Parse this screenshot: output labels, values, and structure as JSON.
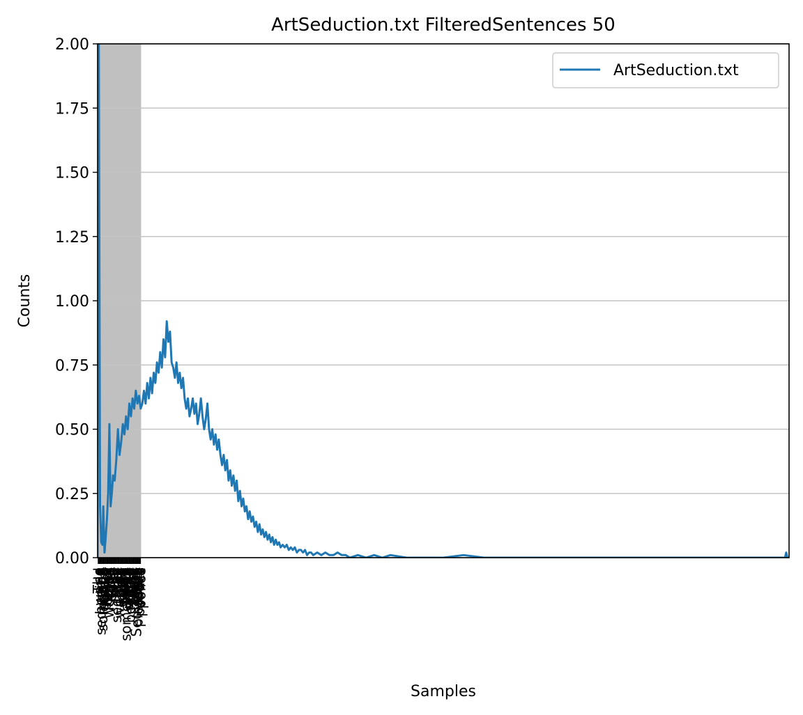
{
  "chart_data": {
    "type": "line",
    "title": "ArtSeduction.txt FilteredSentences 50",
    "xlabel": "Samples",
    "ylabel": "Counts",
    "ylim": [
      0,
      2.0
    ],
    "xlim": [
      0,
      1700
    ],
    "yticks": [
      0.0,
      0.25,
      0.5,
      0.75,
      1.0,
      1.25,
      1.5,
      1.75,
      2.0
    ],
    "ytick_labels": [
      "0.00",
      "0.25",
      "0.50",
      "0.75",
      "1.00",
      "1.25",
      "1.50",
      "1.75",
      "2.00"
    ],
    "grid": "horizontal",
    "legend": {
      "position": "top-right",
      "entries": [
        "ArtSeduction.txt"
      ]
    },
    "highlight_band": {
      "x_start": 0,
      "x_end": 107,
      "color": "#c0c0c0"
    },
    "xtick_labels": [
      "The",
      "world",
      "people",
      "seduction",
      "one",
      "someone",
      "others",
      "often",
      "make",
      "power",
      "come",
      "never",
      "woman",
      "love",
      "time",
      "even",
      "like",
      "life",
      "must",
      "way",
      "man",
      "seducer",
      "feel",
      "may",
      "women",
      "men",
      "know",
      "could",
      "sense",
      "want",
      "also",
      "see",
      "something",
      "give",
      "would",
      "desire",
      "thing",
      "become",
      "need",
      "first",
      "them",
      "way",
      "things",
      "get",
      "Seduction",
      "social",
      "pleasure",
      "tactic",
      "politics",
      "police"
    ],
    "series": [
      {
        "name": "ArtSeduction.txt",
        "color": "#1f77b4",
        "points": [
          [
            0,
            0.0
          ],
          [
            1,
            2.0
          ],
          [
            3,
            2.0
          ],
          [
            6,
            0.2
          ],
          [
            9,
            0.06
          ],
          [
            12,
            0.05
          ],
          [
            14,
            0.2
          ],
          [
            17,
            0.02
          ],
          [
            20,
            0.08
          ],
          [
            23,
            0.15
          ],
          [
            26,
            0.25
          ],
          [
            29,
            0.52
          ],
          [
            32,
            0.2
          ],
          [
            35,
            0.25
          ],
          [
            38,
            0.32
          ],
          [
            42,
            0.3
          ],
          [
            46,
            0.38
          ],
          [
            50,
            0.5
          ],
          [
            54,
            0.4
          ],
          [
            58,
            0.45
          ],
          [
            62,
            0.52
          ],
          [
            66,
            0.48
          ],
          [
            70,
            0.55
          ],
          [
            74,
            0.5
          ],
          [
            78,
            0.6
          ],
          [
            82,
            0.55
          ],
          [
            86,
            0.62
          ],
          [
            90,
            0.58
          ],
          [
            94,
            0.65
          ],
          [
            98,
            0.6
          ],
          [
            102,
            0.63
          ],
          [
            106,
            0.58
          ],
          [
            110,
            0.6
          ],
          [
            114,
            0.65
          ],
          [
            118,
            0.6
          ],
          [
            122,
            0.68
          ],
          [
            126,
            0.62
          ],
          [
            130,
            0.7
          ],
          [
            134,
            0.64
          ],
          [
            138,
            0.72
          ],
          [
            142,
            0.68
          ],
          [
            146,
            0.76
          ],
          [
            150,
            0.72
          ],
          [
            154,
            0.8
          ],
          [
            158,
            0.74
          ],
          [
            162,
            0.85
          ],
          [
            166,
            0.78
          ],
          [
            170,
            0.92
          ],
          [
            174,
            0.84
          ],
          [
            178,
            0.88
          ],
          [
            182,
            0.76
          ],
          [
            186,
            0.74
          ],
          [
            190,
            0.7
          ],
          [
            194,
            0.76
          ],
          [
            198,
            0.68
          ],
          [
            202,
            0.72
          ],
          [
            206,
            0.66
          ],
          [
            210,
            0.7
          ],
          [
            214,
            0.62
          ],
          [
            218,
            0.58
          ],
          [
            222,
            0.62
          ],
          [
            226,
            0.55
          ],
          [
            230,
            0.58
          ],
          [
            234,
            0.62
          ],
          [
            238,
            0.56
          ],
          [
            242,
            0.6
          ],
          [
            246,
            0.52
          ],
          [
            250,
            0.56
          ],
          [
            254,
            0.62
          ],
          [
            258,
            0.55
          ],
          [
            262,
            0.5
          ],
          [
            266,
            0.54
          ],
          [
            270,
            0.6
          ],
          [
            274,
            0.5
          ],
          [
            278,
            0.46
          ],
          [
            282,
            0.5
          ],
          [
            286,
            0.44
          ],
          [
            290,
            0.48
          ],
          [
            294,
            0.42
          ],
          [
            298,
            0.46
          ],
          [
            302,
            0.4
          ],
          [
            306,
            0.36
          ],
          [
            310,
            0.4
          ],
          [
            314,
            0.34
          ],
          [
            318,
            0.38
          ],
          [
            322,
            0.3
          ],
          [
            326,
            0.34
          ],
          [
            330,
            0.28
          ],
          [
            334,
            0.32
          ],
          [
            338,
            0.26
          ],
          [
            342,
            0.3
          ],
          [
            346,
            0.22
          ],
          [
            350,
            0.26
          ],
          [
            354,
            0.2
          ],
          [
            358,
            0.23
          ],
          [
            362,
            0.18
          ],
          [
            366,
            0.2
          ],
          [
            370,
            0.15
          ],
          [
            374,
            0.18
          ],
          [
            378,
            0.14
          ],
          [
            382,
            0.16
          ],
          [
            386,
            0.12
          ],
          [
            390,
            0.14
          ],
          [
            394,
            0.1
          ],
          [
            398,
            0.13
          ],
          [
            402,
            0.09
          ],
          [
            406,
            0.11
          ],
          [
            410,
            0.08
          ],
          [
            414,
            0.1
          ],
          [
            418,
            0.07
          ],
          [
            422,
            0.09
          ],
          [
            426,
            0.06
          ],
          [
            430,
            0.08
          ],
          [
            434,
            0.05
          ],
          [
            438,
            0.07
          ],
          [
            442,
            0.05
          ],
          [
            446,
            0.06
          ],
          [
            450,
            0.04
          ],
          [
            455,
            0.05
          ],
          [
            460,
            0.04
          ],
          [
            465,
            0.05
          ],
          [
            470,
            0.03
          ],
          [
            475,
            0.04
          ],
          [
            480,
            0.03
          ],
          [
            485,
            0.04
          ],
          [
            490,
            0.02
          ],
          [
            495,
            0.03
          ],
          [
            500,
            0.03
          ],
          [
            505,
            0.02
          ],
          [
            510,
            0.03
          ],
          [
            515,
            0.01
          ],
          [
            520,
            0.02
          ],
          [
            525,
            0.02
          ],
          [
            530,
            0.01
          ],
          [
            540,
            0.02
          ],
          [
            550,
            0.01
          ],
          [
            560,
            0.02
          ],
          [
            570,
            0.01
          ],
          [
            580,
            0.01
          ],
          [
            590,
            0.02
          ],
          [
            600,
            0.01
          ],
          [
            610,
            0.01
          ],
          [
            620,
            0.0
          ],
          [
            640,
            0.01
          ],
          [
            660,
            0.0
          ],
          [
            680,
            0.01
          ],
          [
            700,
            0.0
          ],
          [
            720,
            0.01
          ],
          [
            760,
            0.0
          ],
          [
            800,
            0.0
          ],
          [
            850,
            0.0
          ],
          [
            900,
            0.01
          ],
          [
            950,
            0.0
          ],
          [
            1000,
            0.0
          ],
          [
            1100,
            0.0
          ],
          [
            1200,
            0.0
          ],
          [
            1300,
            0.0
          ],
          [
            1400,
            0.0
          ],
          [
            1500,
            0.0
          ],
          [
            1600,
            0.0
          ],
          [
            1690,
            0.0
          ],
          [
            1693,
            0.02
          ],
          [
            1696,
            0.0
          ],
          [
            1700,
            0.0
          ]
        ]
      }
    ]
  }
}
